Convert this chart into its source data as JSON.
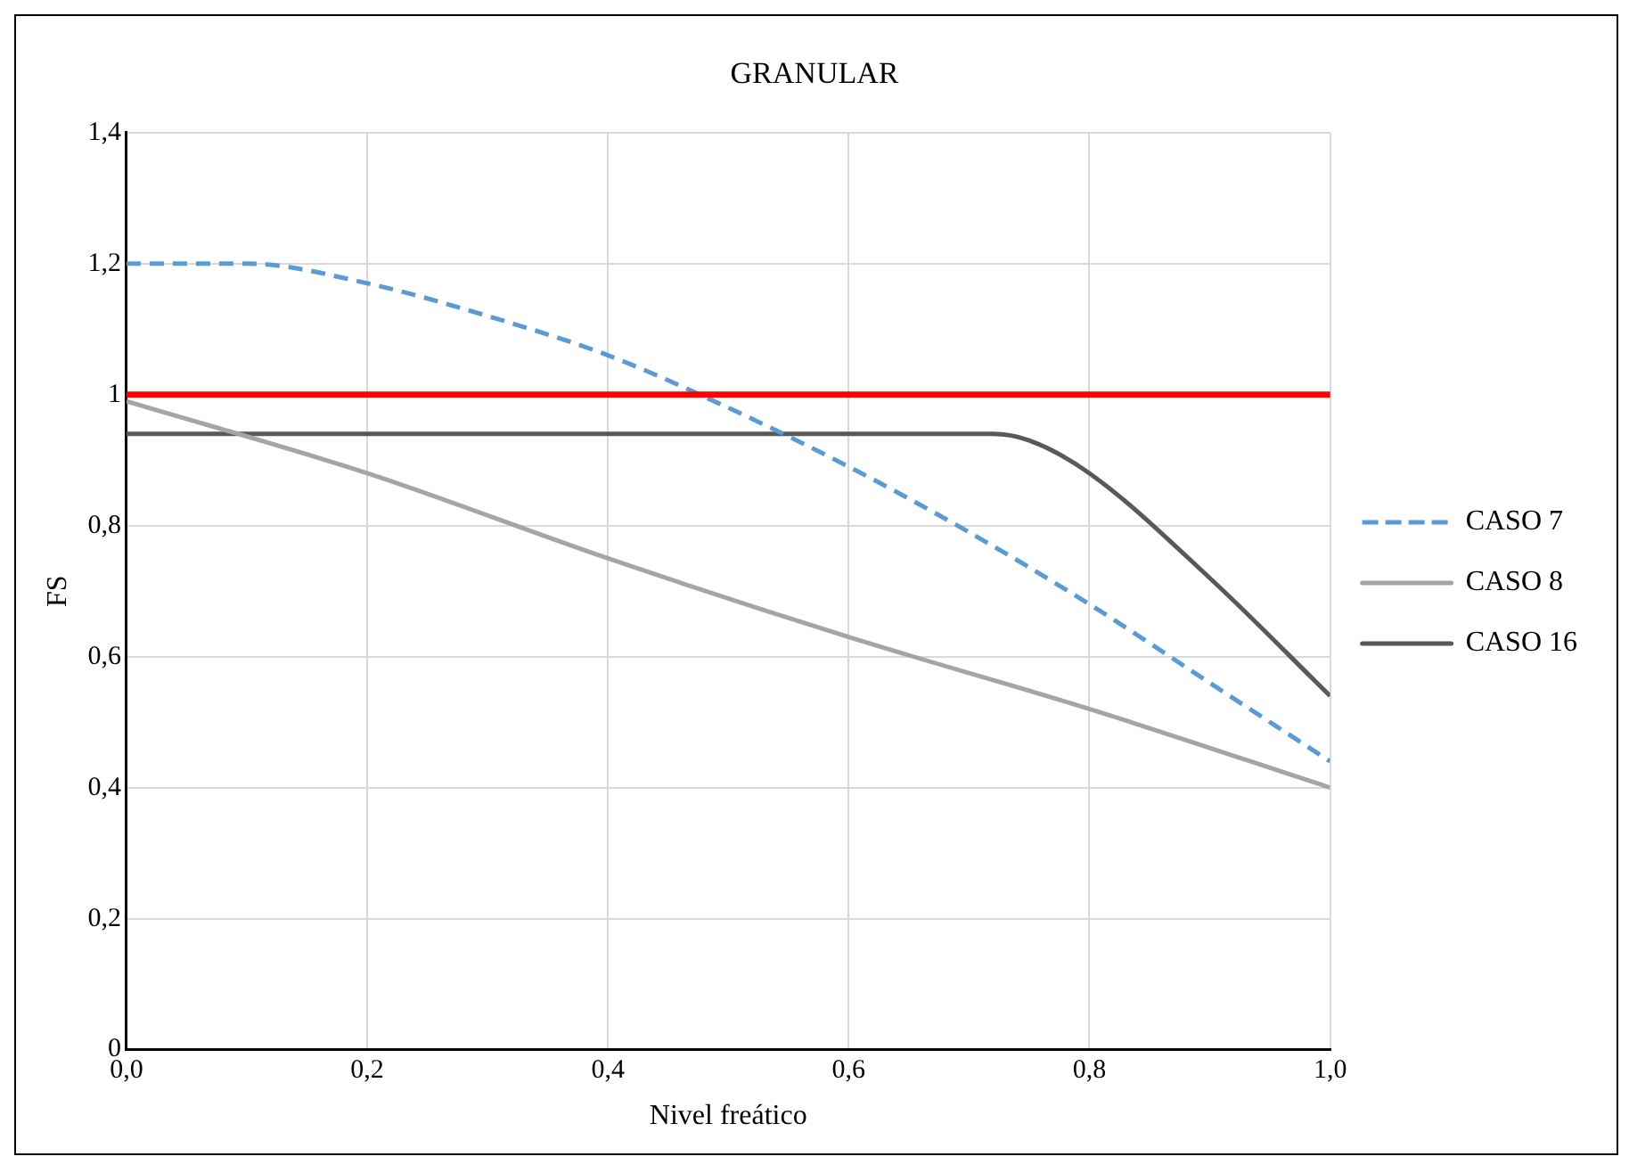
{
  "chart_data": {
    "type": "line",
    "title": "GRANULAR",
    "xlabel": "Nivel freático",
    "ylabel": "FS",
    "xlim": [
      0,
      1
    ],
    "xticks": [
      {
        "value": 0,
        "label": "0,0"
      },
      {
        "value": 0.2,
        "label": "0,2"
      },
      {
        "value": 0.4,
        "label": "0,4"
      },
      {
        "value": 0.6,
        "label": "0,6"
      },
      {
        "value": 0.8,
        "label": "0,8"
      },
      {
        "value": 1,
        "label": "1,0"
      }
    ],
    "ylim": [
      0,
      1.4
    ],
    "yticks": [
      0,
      {
        "value": 0.2,
        "label": "0,2"
      },
      {
        "value": 0.4,
        "label": "0,4"
      },
      {
        "value": 0.6,
        "label": "0,6"
      },
      {
        "value": 0.8,
        "label": "0,8"
      },
      1,
      {
        "value": 1.2,
        "label": "1,2"
      },
      {
        "value": 1.4,
        "label": "1,4"
      }
    ],
    "grid": true,
    "legend": "right",
    "marker": "none",
    "series": [
      {
        "name": "CASO 7",
        "color": "#5b9bd5",
        "line_style": "dashed",
        "x": [
          0,
          0.1,
          0.2,
          0.3,
          0.4,
          0.5,
          0.6,
          0.7,
          0.8,
          0.9,
          1
        ],
        "values": [
          1.2,
          1.2,
          1.17,
          1.12,
          1.06,
          0.98,
          0.89,
          0.79,
          0.68,
          0.56,
          0.44
        ]
      },
      {
        "name": "CASO 8",
        "color": "#a5a5a5",
        "line_style": "solid",
        "x": [
          0,
          0.2,
          0.4,
          0.6,
          0.8,
          1
        ],
        "values": [
          0.99,
          0.88,
          0.75,
          0.63,
          0.52,
          0.4
        ]
      },
      {
        "name": "CASO 16",
        "color": "#595959",
        "line_style": "solid",
        "x": [
          0,
          0.2,
          0.4,
          0.6,
          0.72,
          0.75,
          0.8,
          0.9,
          1
        ],
        "values": [
          0.94,
          0.94,
          0.94,
          0.94,
          0.94,
          0.93,
          0.88,
          0.72,
          0.54
        ]
      }
    ],
    "ref_lines": [
      {
        "axis": "y",
        "value": 1,
        "color": "#ff0000"
      }
    ]
  }
}
